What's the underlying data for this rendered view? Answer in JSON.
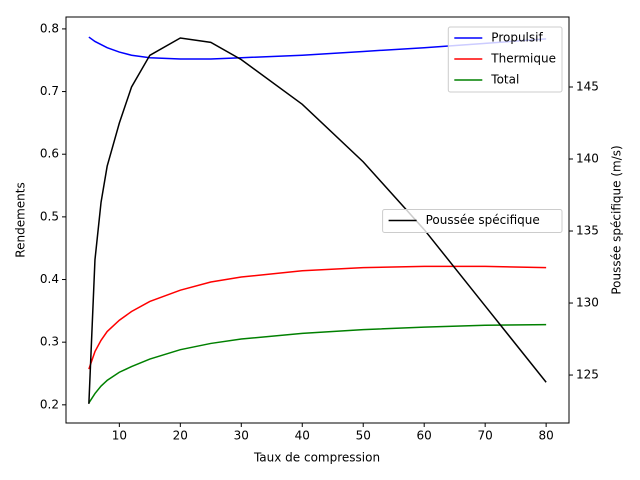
{
  "chart_data": {
    "type": "line",
    "xlabel": "Taux de compression",
    "ylabel": "Rendements",
    "y2label": "Poussée spécifique (m/s)",
    "x": [
      5,
      6,
      7,
      8,
      10,
      12,
      15,
      20,
      25,
      30,
      40,
      50,
      60,
      70,
      80
    ],
    "series": [
      {
        "name": "Propulsif",
        "color": "#0000ff",
        "values": [
          0.787,
          0.78,
          0.775,
          0.77,
          0.763,
          0.758,
          0.754,
          0.752,
          0.752,
          0.754,
          0.758,
          0.764,
          0.77,
          0.777,
          0.784
        ]
      },
      {
        "name": "Thermique",
        "color": "#ff0000",
        "values": [
          0.257,
          0.285,
          0.303,
          0.317,
          0.335,
          0.349,
          0.365,
          0.383,
          0.396,
          0.404,
          0.414,
          0.419,
          0.421,
          0.421,
          0.419
        ]
      },
      {
        "name": "Total",
        "color": "#008000",
        "values": [
          0.203,
          0.218,
          0.23,
          0.239,
          0.252,
          0.261,
          0.273,
          0.288,
          0.298,
          0.305,
          0.314,
          0.32,
          0.324,
          0.327,
          0.328
        ]
      },
      {
        "name": "Poussée spécifique",
        "color": "#000000",
        "axis": "y2",
        "values": [
          123.0,
          133.0,
          137.0,
          139.5,
          142.5,
          145.0,
          147.2,
          148.4,
          148.1,
          146.9,
          143.8,
          139.8,
          135.1,
          129.8,
          124.5
        ]
      }
    ],
    "xlim": [
      1.25,
      83.75
    ],
    "xticks": [
      10,
      20,
      30,
      40,
      50,
      60,
      70,
      80
    ],
    "ylim": [
      0.171,
      0.819
    ],
    "yticks": [
      0.2,
      0.3,
      0.4,
      0.5,
      0.6,
      0.7,
      0.8
    ],
    "y2lim": [
      121.67,
      149.86
    ],
    "y2ticks": [
      125,
      130,
      135,
      140,
      145
    ],
    "legend_loc": "upper right",
    "legend2_loc": "center right"
  }
}
